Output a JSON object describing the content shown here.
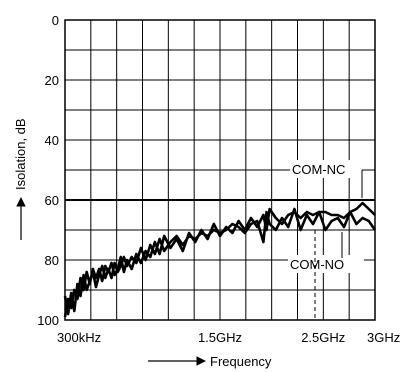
{
  "chart_data": {
    "type": "line",
    "xlabel": "Frequency",
    "ylabel": "Isolation, dB",
    "x_tick_labels": [
      {
        "label": "300kHz",
        "position": 0
      },
      {
        "label": "1.5GHz",
        "position": 0.5
      },
      {
        "label": "2.5GHz",
        "position": 0.833
      },
      {
        "label": "3GHz",
        "position": 1
      }
    ],
    "ylim": [
      0,
      100
    ],
    "y_inverted": true,
    "y_ticks": [
      0,
      20,
      40,
      60,
      80,
      100
    ],
    "x_grid_divisions": 12,
    "y_grid_divisions": 10,
    "grid": true,
    "annotations": [
      {
        "text": "COM-NC",
        "series": "COM-NC"
      },
      {
        "text": "COM-NO",
        "series": "COM-NO"
      }
    ],
    "series": [
      {
        "name": "COM-NC",
        "x": [
          0.0,
          0.01,
          0.02,
          0.03,
          0.04,
          0.05,
          0.06,
          0.07,
          0.08,
          0.09,
          0.1,
          0.11,
          0.12,
          0.13,
          0.14,
          0.15,
          0.16,
          0.17,
          0.18,
          0.19,
          0.2,
          0.215,
          0.23,
          0.245,
          0.26,
          0.275,
          0.29,
          0.305,
          0.32,
          0.34,
          0.36,
          0.38,
          0.4,
          0.42,
          0.44,
          0.46,
          0.48,
          0.5,
          0.52,
          0.54,
          0.56,
          0.58,
          0.6,
          0.62,
          0.64,
          0.65,
          0.66,
          0.68,
          0.7,
          0.72,
          0.74,
          0.76,
          0.78,
          0.8,
          0.82,
          0.84,
          0.86,
          0.88,
          0.9,
          0.92,
          0.94,
          0.96,
          0.98,
          1.0
        ],
        "y": [
          99,
          93,
          96,
          90,
          93,
          86,
          90,
          84,
          88,
          83,
          86,
          83,
          87,
          82,
          84,
          81,
          85,
          83,
          79,
          84,
          80,
          83,
          78,
          81,
          77,
          79,
          74,
          78,
          72,
          76,
          73,
          77,
          71,
          74,
          70,
          73,
          68,
          72,
          69,
          71,
          67,
          70,
          66,
          69,
          65,
          70,
          63,
          66,
          68,
          65,
          64,
          66,
          64,
          65,
          64,
          64,
          65,
          65,
          66,
          64,
          63,
          61,
          63,
          65
        ]
      },
      {
        "name": "COM-NO",
        "x": [
          0.0,
          0.01,
          0.02,
          0.03,
          0.04,
          0.05,
          0.06,
          0.07,
          0.08,
          0.09,
          0.1,
          0.11,
          0.12,
          0.13,
          0.14,
          0.15,
          0.16,
          0.17,
          0.18,
          0.19,
          0.2,
          0.215,
          0.23,
          0.245,
          0.26,
          0.275,
          0.29,
          0.305,
          0.32,
          0.34,
          0.36,
          0.38,
          0.4,
          0.42,
          0.44,
          0.46,
          0.48,
          0.5,
          0.52,
          0.54,
          0.56,
          0.58,
          0.6,
          0.62,
          0.64,
          0.65,
          0.66,
          0.68,
          0.7,
          0.72,
          0.74,
          0.76,
          0.78,
          0.8,
          0.82,
          0.84,
          0.86,
          0.88,
          0.9,
          0.92,
          0.94,
          0.96,
          0.98,
          1.0
        ],
        "y": [
          92,
          98,
          91,
          97,
          88,
          92,
          85,
          90,
          87,
          84,
          89,
          85,
          82,
          86,
          83,
          86,
          81,
          84,
          82,
          79,
          82,
          79,
          81,
          76,
          80,
          75,
          78,
          73,
          77,
          74,
          72,
          75,
          72,
          73,
          71,
          72,
          70,
          71,
          70,
          68,
          69,
          71,
          68,
          67,
          74,
          64,
          68,
          70,
          66,
          69,
          63,
          70,
          65,
          68,
          64,
          70,
          67,
          66,
          69,
          64,
          68,
          66,
          67,
          70
        ]
      }
    ]
  }
}
